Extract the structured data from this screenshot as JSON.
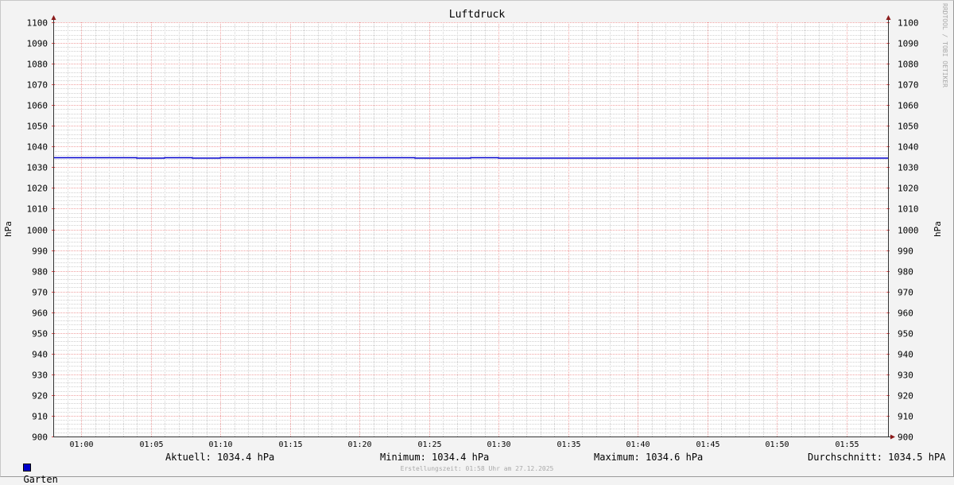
{
  "chart_data": {
    "type": "line",
    "title": "Luftdruck",
    "ylabel": "hPa",
    "ylabel_right": "hPa",
    "ylim": [
      900,
      1100
    ],
    "yticks": [
      900,
      910,
      920,
      930,
      940,
      950,
      960,
      970,
      980,
      990,
      1000,
      1010,
      1020,
      1030,
      1040,
      1050,
      1060,
      1070,
      1080,
      1090,
      1100
    ],
    "xlim": [
      "00:58",
      "01:58"
    ],
    "xticks": [
      "01:00",
      "01:05",
      "01:10",
      "01:15",
      "01:20",
      "01:25",
      "01:30",
      "01:35",
      "01:40",
      "01:45",
      "01:50",
      "01:55"
    ],
    "grid": true,
    "step": true,
    "series": [
      {
        "name": "Garten",
        "color": "#0000cc",
        "points": [
          {
            "x": "00:58",
            "y": 1034.6
          },
          {
            "x": "01:04",
            "y": 1034.4
          },
          {
            "x": "01:06",
            "y": 1034.6
          },
          {
            "x": "01:08",
            "y": 1034.4
          },
          {
            "x": "01:10",
            "y": 1034.6
          },
          {
            "x": "01:24",
            "y": 1034.4
          },
          {
            "x": "01:28",
            "y": 1034.6
          },
          {
            "x": "01:30",
            "y": 1034.4
          },
          {
            "x": "01:58",
            "y": 1034.4
          }
        ]
      }
    ]
  },
  "legend": {
    "series_name": "Garten",
    "current": "Aktuell: 1034.4 hPa",
    "minimum": "Minimum: 1034.4 hPa",
    "maximum": "Maximum: 1034.6 hPa",
    "average": "Durchschnitt: 1034.5 hPA"
  },
  "footer": "Erstellungszeit: 01:58 Uhr am 27.12.2025",
  "watermark": "RRDTOOL / TOBI OETIKER"
}
